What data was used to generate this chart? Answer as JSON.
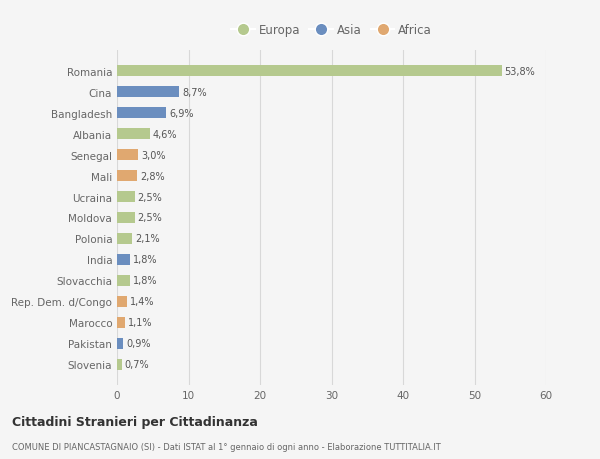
{
  "countries": [
    "Romania",
    "Cina",
    "Bangladesh",
    "Albania",
    "Senegal",
    "Mali",
    "Ucraina",
    "Moldova",
    "Polonia",
    "India",
    "Slovacchia",
    "Rep. Dem. d/Congo",
    "Marocco",
    "Pakistan",
    "Slovenia"
  ],
  "values": [
    53.8,
    8.7,
    6.9,
    4.6,
    3.0,
    2.8,
    2.5,
    2.5,
    2.1,
    1.8,
    1.8,
    1.4,
    1.1,
    0.9,
    0.7
  ],
  "labels": [
    "53,8%",
    "8,7%",
    "6,9%",
    "4,6%",
    "3,0%",
    "2,8%",
    "2,5%",
    "2,5%",
    "2,1%",
    "1,8%",
    "1,8%",
    "1,4%",
    "1,1%",
    "0,9%",
    "0,7%"
  ],
  "continents": [
    "Europa",
    "Asia",
    "Asia",
    "Europa",
    "Africa",
    "Africa",
    "Europa",
    "Europa",
    "Europa",
    "Asia",
    "Europa",
    "Africa",
    "Africa",
    "Asia",
    "Europa"
  ],
  "colors": {
    "Europa": "#b5c98e",
    "Asia": "#6b8ebf",
    "Africa": "#e0a870"
  },
  "xlim": [
    0,
    60
  ],
  "xticks": [
    0,
    10,
    20,
    30,
    40,
    50,
    60
  ],
  "background_color": "#f5f5f5",
  "title": "Cittadini Stranieri per Cittadinanza",
  "subtitle": "COMUNE DI PIANCASTAGNAIO (SI) - Dati ISTAT al 1° gennaio di ogni anno - Elaborazione TUTTITALIA.IT",
  "grid_color": "#d8d8d8",
  "text_color": "#666666",
  "label_color": "#555555"
}
